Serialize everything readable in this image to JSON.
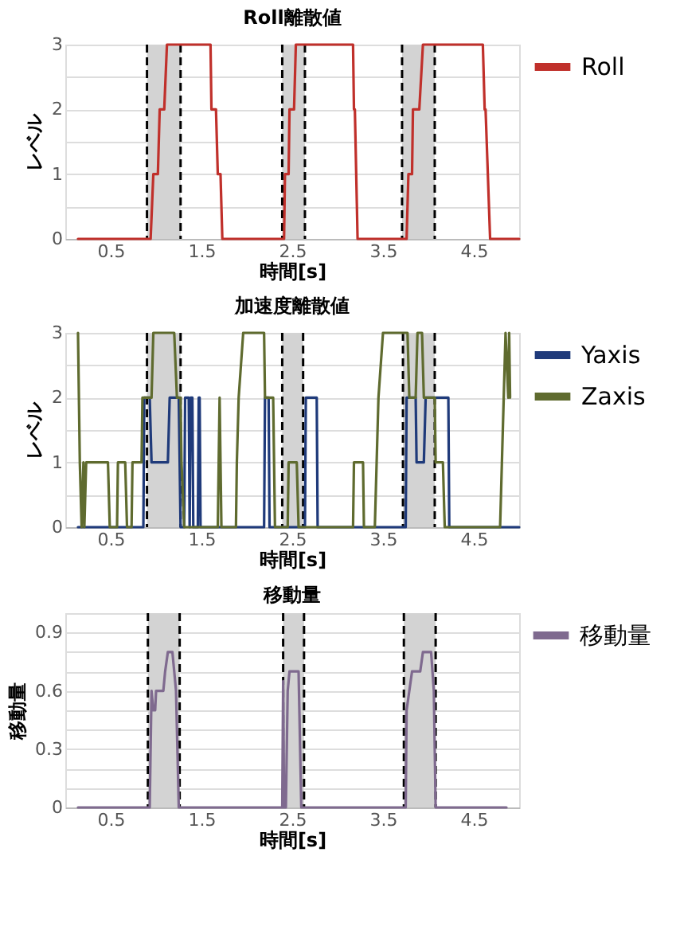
{
  "chart_data": [
    {
      "type": "line",
      "title": "Roll離散値",
      "xlabel": "時間[s]",
      "ylabel": "レベル",
      "xlim": [
        0,
        5
      ],
      "xticks": [
        0.5,
        1.5,
        2.5,
        3.5,
        4.5
      ],
      "ylim": [
        0,
        3
      ],
      "yticks": [
        0,
        {
          "value": 0.5,
          "label": null
        },
        1,
        {
          "value": 1.5,
          "label": null
        },
        2,
        {
          "value": 2.5,
          "label": null
        },
        3
      ],
      "grid": "y",
      "legend": "right",
      "bands": [
        {
          "axis": "x",
          "from": 0.9,
          "to": 1.27,
          "color": "#d3d3d3"
        },
        {
          "axis": "x",
          "from": 2.39,
          "to": 2.64,
          "color": "#d3d3d3"
        },
        {
          "axis": "x",
          "from": 3.71,
          "to": 4.07,
          "color": "#d3d3d3"
        }
      ],
      "ref_lines": [
        {
          "axis": "x",
          "value": 0.9,
          "color": "#000000",
          "line_style": "dashed"
        },
        {
          "axis": "x",
          "value": 1.27,
          "color": "#000000",
          "line_style": "dashed"
        },
        {
          "axis": "x",
          "value": 2.39,
          "color": "#000000",
          "line_style": "dashed"
        },
        {
          "axis": "x",
          "value": 2.64,
          "color": "#000000",
          "line_style": "dashed"
        },
        {
          "axis": "x",
          "value": 3.71,
          "color": "#000000",
          "line_style": "dashed"
        },
        {
          "axis": "x",
          "value": 4.07,
          "color": "#000000",
          "line_style": "dashed"
        }
      ],
      "series": [
        {
          "name": "Roll",
          "color": "#c0302b",
          "x": [
            0.14,
            0.94,
            0.97,
            1.02,
            1.04,
            1.09,
            1.12,
            1.6,
            1.61,
            1.66,
            1.68,
            1.71,
            1.73,
            2.41,
            2.42,
            2.46,
            2.47,
            2.52,
            2.54,
            3.17,
            3.18,
            3.19,
            3.22,
            3.76,
            3.78,
            3.82,
            3.83,
            3.9,
            3.94,
            4.6,
            4.62,
            4.63,
            4.68,
            5.0
          ],
          "values": [
            0,
            0,
            1,
            1,
            2,
            2,
            3,
            3,
            2,
            2,
            1,
            1,
            0,
            0,
            1,
            1,
            2,
            2,
            3,
            3,
            2,
            2,
            0,
            0,
            1,
            1,
            2,
            2,
            3,
            3,
            2,
            2,
            0,
            0
          ]
        }
      ]
    },
    {
      "type": "line",
      "title": "加速度離散値",
      "xlabel": "時間[s]",
      "ylabel": "レベル",
      "xlim": [
        0,
        5
      ],
      "xticks": [
        0.5,
        1.5,
        2.5,
        3.5,
        4.5
      ],
      "ylim": [
        0,
        3
      ],
      "yticks": [
        0,
        {
          "value": 0.5,
          "label": null
        },
        1,
        {
          "value": 1.5,
          "label": null
        },
        2,
        {
          "value": 2.5,
          "label": null
        },
        3
      ],
      "grid": "y",
      "legend": "right",
      "bands": [
        {
          "axis": "x",
          "from": 0.9,
          "to": 1.27,
          "color": "#d3d3d3"
        },
        {
          "axis": "x",
          "from": 2.39,
          "to": 2.62,
          "color": "#d3d3d3"
        },
        {
          "axis": "x",
          "from": 3.72,
          "to": 4.07,
          "color": "#d3d3d3"
        }
      ],
      "ref_lines": [
        {
          "axis": "x",
          "value": 0.9,
          "color": "#000000",
          "line_style": "dashed"
        },
        {
          "axis": "x",
          "value": 1.27,
          "color": "#000000",
          "line_style": "dashed"
        },
        {
          "axis": "x",
          "value": 2.39,
          "color": "#000000",
          "line_style": "dashed"
        },
        {
          "axis": "x",
          "value": 2.62,
          "color": "#000000",
          "line_style": "dashed"
        },
        {
          "axis": "x",
          "value": 3.72,
          "color": "#000000",
          "line_style": "dashed"
        },
        {
          "axis": "x",
          "value": 4.07,
          "color": "#000000",
          "line_style": "dashed"
        }
      ],
      "series": [
        {
          "name": "Yaxis",
          "color": "#1f3a7a",
          "x": [
            0.14,
            0.86,
            0.87,
            0.93,
            0.95,
            1.13,
            1.15,
            1.25,
            1.27,
            1.31,
            1.32,
            1.36,
            1.37,
            1.38,
            1.4,
            1.41,
            1.46,
            1.47,
            1.48,
            1.49,
            2.19,
            2.2,
            2.24,
            2.25,
            2.64,
            2.65,
            2.77,
            2.78,
            3.75,
            3.76,
            3.86,
            3.87,
            3.95,
            3.97,
            4.22,
            4.23,
            5.0
          ],
          "values": [
            0,
            0,
            2,
            2,
            1,
            1,
            2,
            2,
            0,
            0,
            2,
            2,
            0,
            2,
            2,
            0,
            0,
            2,
            2,
            0,
            0,
            2,
            2,
            0,
            0,
            2,
            2,
            0,
            0,
            2,
            2,
            1,
            1,
            2,
            2,
            0,
            0
          ]
        },
        {
          "name": "Zaxis",
          "color": "#5f6b2f",
          "x": [
            0.14,
            0.16,
            0.18,
            0.2,
            0.21,
            0.23,
            0.47,
            0.49,
            0.57,
            0.58,
            0.66,
            0.68,
            0.73,
            0.74,
            0.84,
            0.85,
            0.95,
            0.97,
            1.2,
            1.23,
            1.27,
            1.28,
            1.31,
            1.68,
            1.69,
            1.7,
            1.71,
            1.72,
            1.88,
            1.89,
            1.91,
            1.96,
            2.19,
            2.2,
            2.29,
            2.31,
            2.45,
            2.46,
            2.55,
            2.57,
            3.17,
            3.18,
            3.28,
            3.29,
            3.41,
            3.43,
            3.45,
            3.5,
            3.77,
            3.79,
            3.86,
            3.88,
            3.93,
            3.95,
            4.07,
            4.08,
            4.16,
            4.18,
            4.79,
            4.81,
            4.85,
            4.88,
            4.89,
            4.9
          ],
          "values": [
            3,
            1,
            0,
            1,
            0,
            1,
            1,
            0,
            0,
            1,
            1,
            0,
            0,
            1,
            1,
            2,
            2,
            3,
            3,
            2,
            2,
            1,
            0,
            0,
            1,
            2,
            1,
            0,
            0,
            1,
            2,
            3,
            3,
            2,
            2,
            0,
            0,
            1,
            1,
            0,
            0,
            1,
            1,
            0,
            0,
            1,
            2,
            3,
            3,
            2,
            2,
            3,
            3,
            2,
            2,
            1,
            1,
            0,
            0,
            1,
            3,
            2,
            3,
            2
          ]
        }
      ]
    },
    {
      "type": "line",
      "title": "移動量",
      "xlabel": "時間[s]",
      "ylabel": "移動量",
      "xlim": [
        0,
        5
      ],
      "xticks": [
        0.5,
        1.5,
        2.5,
        3.5,
        4.5
      ],
      "ylim": [
        0,
        1.0
      ],
      "yticks": [
        0,
        {
          "value": 0.1,
          "label": null
        },
        {
          "value": 0.2,
          "label": null
        },
        0.3,
        {
          "value": 0.4,
          "label": null
        },
        {
          "value": 0.5,
          "label": null
        },
        0.6,
        {
          "value": 0.7,
          "label": null
        },
        {
          "value": 0.8,
          "label": null
        },
        0.9,
        {
          "value": 1.0,
          "label": null
        }
      ],
      "grid": "y",
      "legend": "right",
      "bands": [
        {
          "axis": "x",
          "from": 0.91,
          "to": 1.26,
          "color": "#d3d3d3"
        },
        {
          "axis": "x",
          "from": 2.4,
          "to": 2.63,
          "color": "#d3d3d3"
        },
        {
          "axis": "x",
          "from": 3.73,
          "to": 4.08,
          "color": "#d3d3d3"
        }
      ],
      "ref_lines": [
        {
          "axis": "x",
          "value": 0.91,
          "color": "#000000",
          "line_style": "dashed"
        },
        {
          "axis": "x",
          "value": 1.26,
          "color": "#000000",
          "line_style": "dashed"
        },
        {
          "axis": "x",
          "value": 2.4,
          "color": "#000000",
          "line_style": "dashed"
        },
        {
          "axis": "x",
          "value": 2.63,
          "color": "#000000",
          "line_style": "dashed"
        },
        {
          "axis": "x",
          "value": 3.73,
          "color": "#000000",
          "line_style": "dashed"
        },
        {
          "axis": "x",
          "value": 4.08,
          "color": "#000000",
          "line_style": "dashed"
        }
      ],
      "series": [
        {
          "name": "移動量",
          "color": "#7f6a8f",
          "x": [
            0.14,
            0.93,
            0.95,
            0.97,
            0.99,
            1.0,
            1.08,
            1.1,
            1.13,
            1.18,
            1.2,
            1.22,
            1.25,
            2.39,
            2.4,
            2.41,
            2.43,
            2.45,
            2.47,
            2.57,
            2.6,
            3.75,
            3.76,
            3.79,
            3.82,
            3.91,
            3.94,
            4.03,
            4.06,
            4.08,
            4.86
          ],
          "values": [
            0,
            0,
            0.6,
            0.5,
            0.5,
            0.6,
            0.6,
            0.7,
            0.8,
            0.8,
            0.7,
            0.6,
            0,
            0,
            0.65,
            0,
            0,
            0.6,
            0.7,
            0.7,
            0,
            0,
            0.5,
            0.6,
            0.7,
            0.7,
            0.8,
            0.8,
            0.6,
            0,
            0
          ]
        }
      ]
    }
  ]
}
